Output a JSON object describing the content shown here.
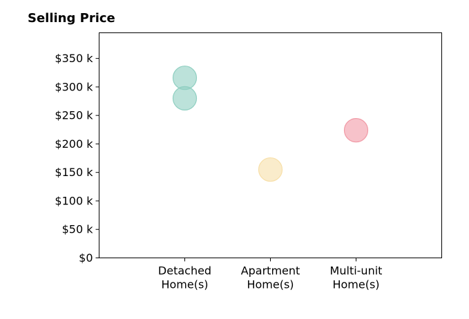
{
  "chart_data": {
    "type": "scatter",
    "title": "Selling Price",
    "xlabel": "",
    "ylabel": "",
    "categories": [
      [
        "Detached",
        "Home(s)"
      ],
      [
        "Apartment",
        "Home(s)"
      ],
      [
        "Multi-unit",
        "Home(s)"
      ]
    ],
    "ylim": [
      0,
      395000
    ],
    "yticks": [
      0,
      50000,
      100000,
      150000,
      200000,
      250000,
      300000,
      350000
    ],
    "ytick_labels": [
      "$0",
      "$50 k",
      "$100 k",
      "$150 k",
      "$200 k",
      "$250 k",
      "$300 k",
      "$350 k"
    ],
    "grid": false,
    "legend": "none",
    "points": [
      {
        "category": 0,
        "y": 316000,
        "color": "#8fcfc1"
      },
      {
        "category": 0,
        "y": 280000,
        "color": "#8fcfc1"
      },
      {
        "category": 1,
        "y": 155000,
        "color": "#f7dfa8"
      },
      {
        "category": 2,
        "y": 224000,
        "color": "#f19aa6"
      }
    ]
  }
}
